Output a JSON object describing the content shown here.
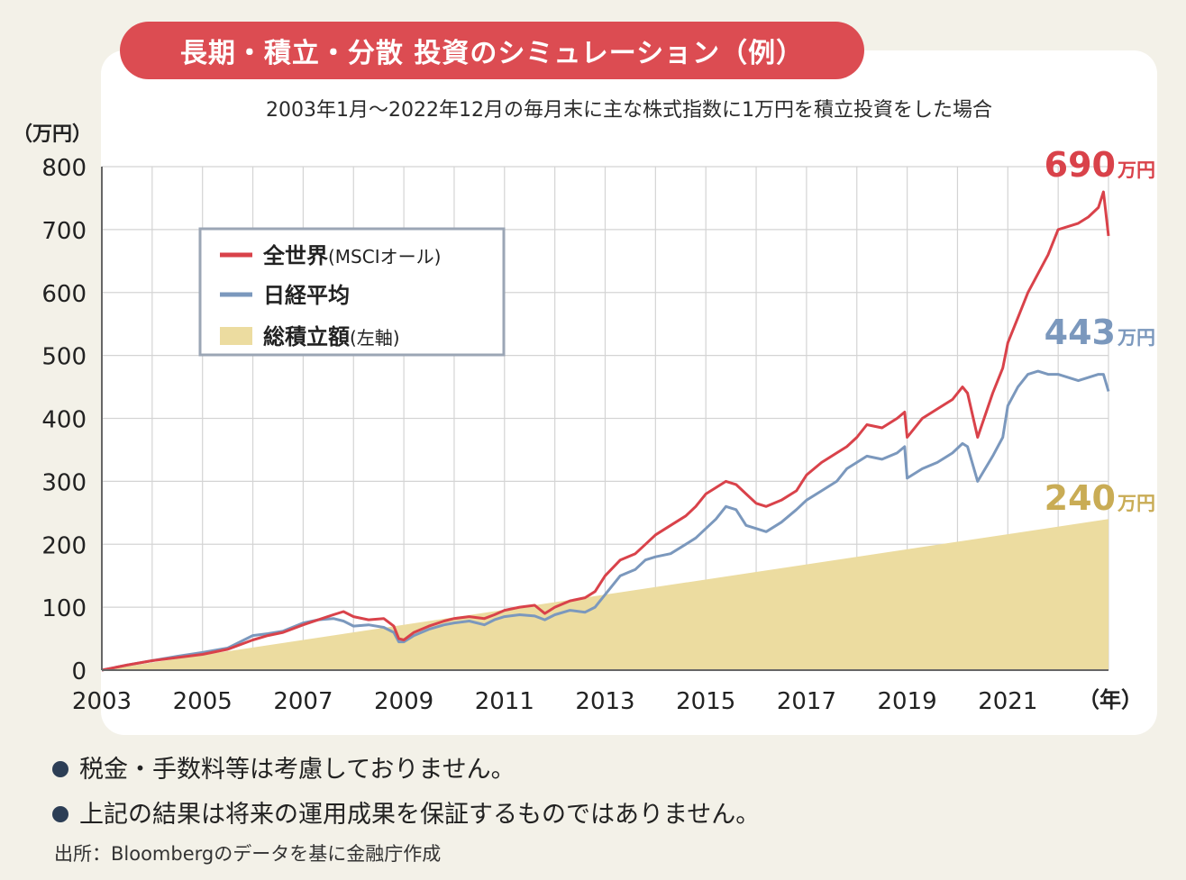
{
  "title": "長期・積立・分散 投資のシミュレーション（例）",
  "subtitle": "2003年1月〜2022年12月の毎月末に主な株式指数に1万円を積立投資をした場合",
  "notes": [
    "税金・手数料等は考慮しておりません。",
    "上記の結果は将来の運用成果を保証するものではありません。"
  ],
  "source": "出所：Bloombergのデータを基に金融庁作成",
  "colors": {
    "world": "#d9424a",
    "nikkei": "#7b98bd",
    "total": "#ecdca0",
    "total_label": "#c9ac55",
    "grid": "#d4d4d4",
    "axis": "#666666"
  },
  "chart_data": {
    "type": "line",
    "ylabel": "（万円）",
    "xlabel": "（年）",
    "xlim": [
      2003,
      2023
    ],
    "ylim": [
      0,
      800
    ],
    "yticks": [
      0,
      100,
      200,
      300,
      400,
      500,
      600,
      700,
      800
    ],
    "xticks": [
      2003,
      2005,
      2007,
      2009,
      2011,
      2013,
      2015,
      2017,
      2019,
      2021
    ],
    "grid": true,
    "legend_position": "top-left",
    "end_labels": [
      {
        "series": "全世界",
        "value": "690",
        "unit": "万円"
      },
      {
        "series": "日経平均",
        "value": "443",
        "unit": "万円"
      },
      {
        "series": "総積立額",
        "value": "240",
        "unit": "万円"
      }
    ],
    "series": [
      {
        "name": "全世界(MSCIオール)",
        "legend_main": "全世界",
        "legend_sub": "(MSCIオール)",
        "kind": "line",
        "x": [
          2003.0,
          2003.5,
          2004.0,
          2004.5,
          2005.0,
          2005.5,
          2006.0,
          2006.3,
          2006.6,
          2007.0,
          2007.3,
          2007.6,
          2007.8,
          2008.0,
          2008.3,
          2008.6,
          2008.8,
          2008.9,
          2009.0,
          2009.2,
          2009.5,
          2009.8,
          2010.0,
          2010.3,
          2010.6,
          2010.8,
          2011.0,
          2011.3,
          2011.6,
          2011.8,
          2012.0,
          2012.3,
          2012.6,
          2012.8,
          2013.0,
          2013.3,
          2013.6,
          2013.8,
          2014.0,
          2014.3,
          2014.6,
          2014.8,
          2015.0,
          2015.2,
          2015.4,
          2015.6,
          2015.8,
          2016.0,
          2016.2,
          2016.5,
          2016.8,
          2017.0,
          2017.3,
          2017.6,
          2017.8,
          2018.0,
          2018.2,
          2018.5,
          2018.8,
          2018.95,
          2019.0,
          2019.3,
          2019.6,
          2019.9,
          2020.1,
          2020.2,
          2020.4,
          2020.7,
          2020.9,
          2021.0,
          2021.2,
          2021.4,
          2021.6,
          2021.8,
          2022.0,
          2022.2,
          2022.4,
          2022.6,
          2022.8,
          2022.9,
          2023.0
        ],
        "values": [
          0,
          8,
          15,
          20,
          25,
          33,
          48,
          55,
          60,
          72,
          80,
          88,
          93,
          85,
          80,
          82,
          70,
          50,
          48,
          60,
          70,
          78,
          82,
          85,
          82,
          88,
          95,
          100,
          103,
          90,
          100,
          110,
          115,
          125,
          150,
          175,
          185,
          200,
          215,
          230,
          245,
          260,
          280,
          290,
          300,
          295,
          280,
          265,
          260,
          270,
          285,
          310,
          330,
          345,
          355,
          370,
          390,
          385,
          400,
          410,
          370,
          400,
          415,
          430,
          450,
          440,
          370,
          440,
          480,
          520,
          560,
          600,
          630,
          660,
          700,
          705,
          710,
          720,
          735,
          760,
          690
        ]
      },
      {
        "name": "日経平均",
        "legend_main": "日経平均",
        "legend_sub": "",
        "kind": "line",
        "x": [
          2003.0,
          2003.5,
          2004.0,
          2004.5,
          2005.0,
          2005.5,
          2006.0,
          2006.3,
          2006.6,
          2007.0,
          2007.3,
          2007.6,
          2007.8,
          2008.0,
          2008.3,
          2008.6,
          2008.8,
          2008.9,
          2009.0,
          2009.2,
          2009.5,
          2009.8,
          2010.0,
          2010.3,
          2010.6,
          2010.8,
          2011.0,
          2011.3,
          2011.6,
          2011.8,
          2012.0,
          2012.3,
          2012.6,
          2012.8,
          2013.0,
          2013.3,
          2013.6,
          2013.8,
          2014.0,
          2014.3,
          2014.6,
          2014.8,
          2015.0,
          2015.2,
          2015.4,
          2015.6,
          2015.8,
          2016.0,
          2016.2,
          2016.5,
          2016.8,
          2017.0,
          2017.3,
          2017.6,
          2017.8,
          2018.0,
          2018.2,
          2018.5,
          2018.8,
          2018.95,
          2019.0,
          2019.3,
          2019.6,
          2019.9,
          2020.1,
          2020.2,
          2020.4,
          2020.7,
          2020.9,
          2021.0,
          2021.2,
          2021.4,
          2021.6,
          2021.8,
          2022.0,
          2022.2,
          2022.4,
          2022.6,
          2022.8,
          2022.9,
          2023.0
        ],
        "values": [
          0,
          8,
          15,
          22,
          28,
          35,
          55,
          58,
          62,
          75,
          80,
          82,
          78,
          70,
          72,
          68,
          60,
          45,
          45,
          55,
          65,
          72,
          75,
          78,
          72,
          80,
          85,
          88,
          86,
          80,
          88,
          95,
          92,
          100,
          120,
          150,
          160,
          175,
          180,
          185,
          200,
          210,
          225,
          240,
          260,
          255,
          230,
          225,
          220,
          235,
          255,
          270,
          285,
          300,
          320,
          330,
          340,
          335,
          345,
          355,
          305,
          320,
          330,
          345,
          360,
          355,
          300,
          340,
          370,
          420,
          450,
          470,
          475,
          470,
          470,
          465,
          460,
          465,
          470,
          470,
          443
        ]
      },
      {
        "name": "総積立額(左軸)",
        "legend_main": "総積立額",
        "legend_sub": "(左軸)",
        "kind": "area",
        "x": [
          2003,
          2023
        ],
        "values": [
          0,
          240
        ]
      }
    ]
  }
}
